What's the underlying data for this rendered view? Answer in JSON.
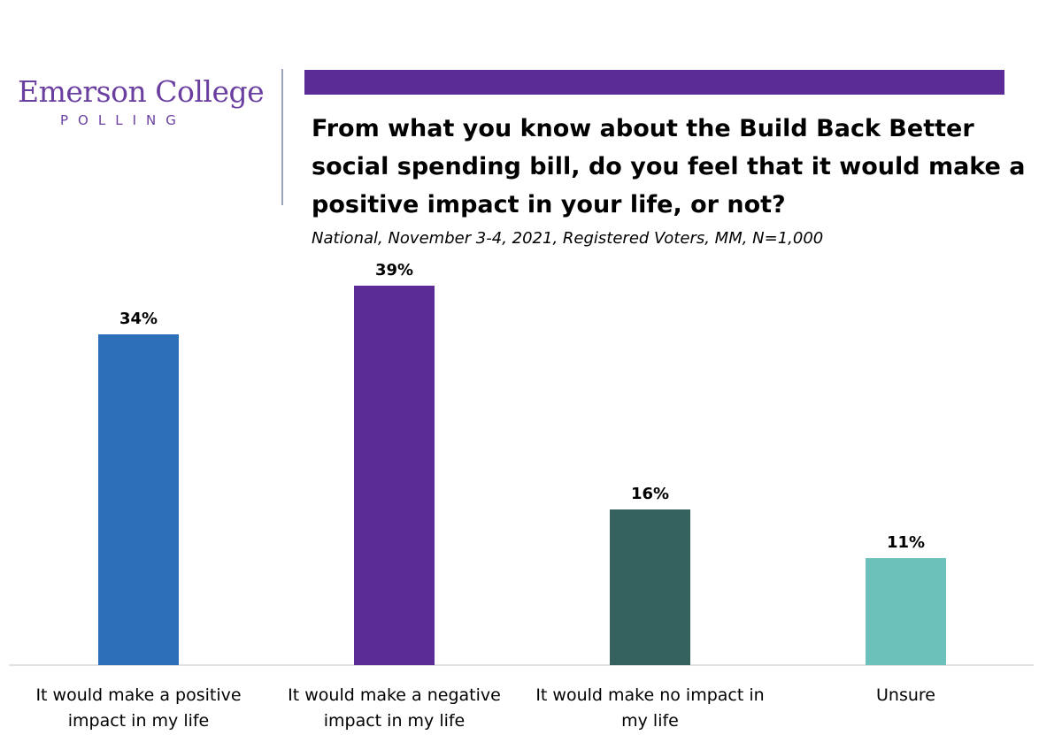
{
  "brand": {
    "name": "Emerson College",
    "sub": "POLLING",
    "bar_color": "#5b2c96"
  },
  "header": {
    "title": "From what you know about the Build Back Better social spending bill, do you feel that it would make a positive impact in your life, or not?",
    "subtitle": "National, November 3-4, 2021, Registered Voters, MM, N=1,000"
  },
  "chart_data": {
    "type": "bar",
    "categories": [
      [
        "It would make a positive",
        "impact in my life"
      ],
      [
        "It would make a negative",
        "impact in my life"
      ],
      [
        "It would make no impact in",
        "my life"
      ],
      [
        "Unsure"
      ]
    ],
    "values": [
      34,
      39,
      16,
      11
    ],
    "value_labels": [
      "34%",
      "39%",
      "16%",
      "11%"
    ],
    "colors": [
      "#2e6fba",
      "#5b2c96",
      "#35625f",
      "#6cc2bb"
    ],
    "ylim": [
      0,
      39
    ],
    "grid": false,
    "legend": "none"
  }
}
